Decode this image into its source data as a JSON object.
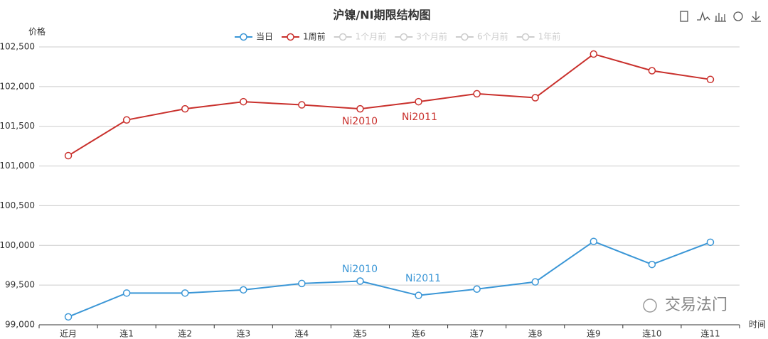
{
  "chart_data": {
    "type": "line",
    "title": "沪镍/NI期限结构图",
    "y_axis_label": "价格",
    "x_axis_label": "时间",
    "categories": [
      "近月",
      "连1",
      "连2",
      "连3",
      "连4",
      "连5",
      "连6",
      "连7",
      "连8",
      "连9",
      "连10",
      "连11"
    ],
    "series": [
      {
        "name": "当日",
        "color": "#3a96d6",
        "values": [
          99100,
          99400,
          99400,
          99440,
          99520,
          99550,
          99370,
          99450,
          99540,
          100050,
          99760,
          100040
        ]
      },
      {
        "name": "1周前",
        "color": "#c9302c",
        "values": [
          101130,
          101580,
          101720,
          101810,
          101770,
          101720,
          101810,
          101910,
          101860,
          102410,
          102200,
          102090
        ]
      }
    ],
    "inactive_legend": [
      "1个月前",
      "3个月前",
      "6个月前",
      "1年前"
    ],
    "annotations": [
      {
        "text": "Ni2010",
        "series": 1
      },
      {
        "text": "Ni2011",
        "series": 1
      },
      {
        "text": "Ni2010",
        "series": 0
      },
      {
        "text": "Ni2011",
        "series": 0
      }
    ],
    "watermark": "交易法门",
    "ylim": [
      99000,
      102500
    ],
    "yticks": [
      {
        "value": 99000,
        "label": "99,000"
      },
      {
        "value": 99500,
        "label": "99,500"
      },
      {
        "value": 100000,
        "label": "100,000"
      },
      {
        "value": 100500,
        "label": "100,500"
      },
      {
        "value": 101000,
        "label": "101,000"
      },
      {
        "value": 101500,
        "label": "101,500"
      },
      {
        "value": 102000,
        "label": "102,000"
      },
      {
        "value": 102500,
        "label": "102,500"
      }
    ],
    "grid": true
  }
}
